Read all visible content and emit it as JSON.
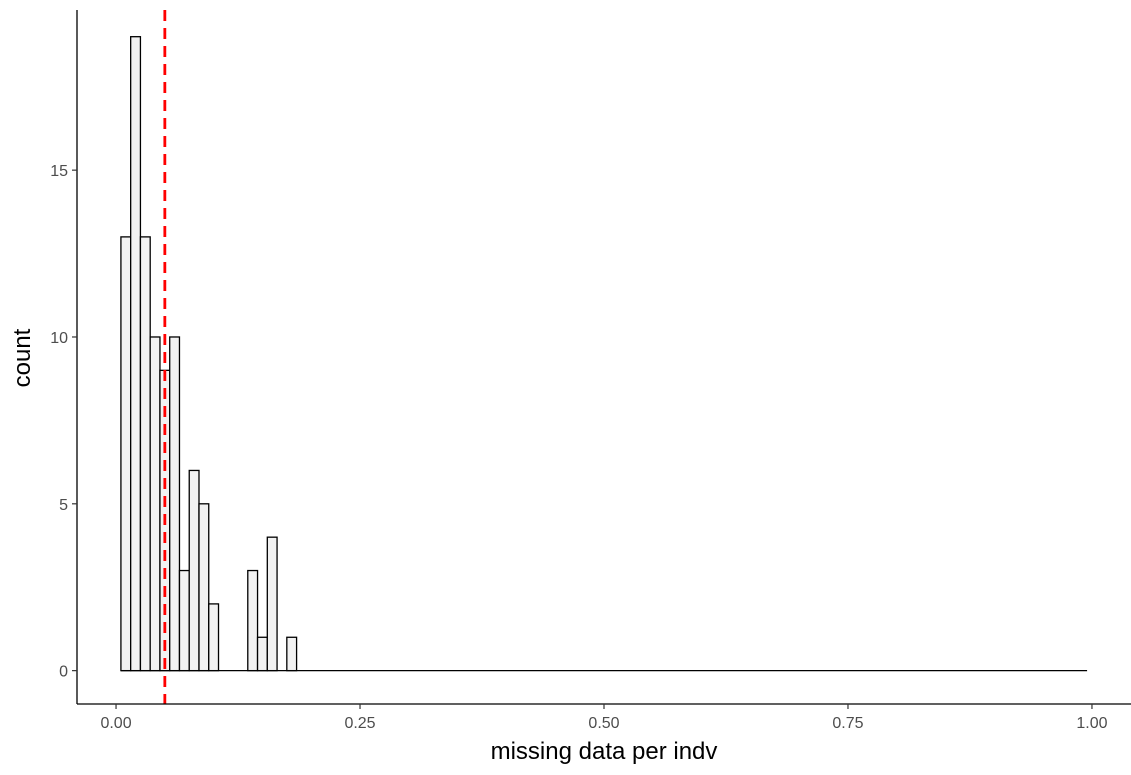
{
  "chart_data": {
    "type": "histogram",
    "title": "",
    "xlabel": "missing data per indv",
    "ylabel": "count",
    "xlim": [
      -0.04,
      1.04
    ],
    "ylim": [
      -1,
      19.8
    ],
    "bin_width": 0.01,
    "x_ticks": [
      {
        "value": 0.0,
        "label": "0.00"
      },
      {
        "value": 0.25,
        "label": "0.25"
      },
      {
        "value": 0.5,
        "label": "0.50"
      },
      {
        "value": 0.75,
        "label": "0.75"
      },
      {
        "value": 1.0,
        "label": "1.00"
      }
    ],
    "y_ticks": [
      {
        "value": 0,
        "label": "0"
      },
      {
        "value": 5,
        "label": "5"
      },
      {
        "value": 10,
        "label": "10"
      },
      {
        "value": 15,
        "label": "15"
      }
    ],
    "bins": [
      {
        "x": 0.01,
        "count": 13
      },
      {
        "x": 0.02,
        "count": 19
      },
      {
        "x": 0.03,
        "count": 13
      },
      {
        "x": 0.04,
        "count": 10
      },
      {
        "x": 0.05,
        "count": 9
      },
      {
        "x": 0.06,
        "count": 10
      },
      {
        "x": 0.07,
        "count": 3
      },
      {
        "x": 0.08,
        "count": 6
      },
      {
        "x": 0.09,
        "count": 5
      },
      {
        "x": 0.1,
        "count": 2
      },
      {
        "x": 0.14,
        "count": 3
      },
      {
        "x": 0.15,
        "count": 1
      },
      {
        "x": 0.16,
        "count": 4
      },
      {
        "x": 0.18,
        "count": 1
      }
    ],
    "baseline_range": [
      0.005,
      0.995
    ],
    "reference_line": {
      "x": 0.05,
      "color": "#ff0000",
      "style": "dashed"
    },
    "bar_fill": "#f2f2f2",
    "bar_stroke": "#000000",
    "grid": false
  }
}
